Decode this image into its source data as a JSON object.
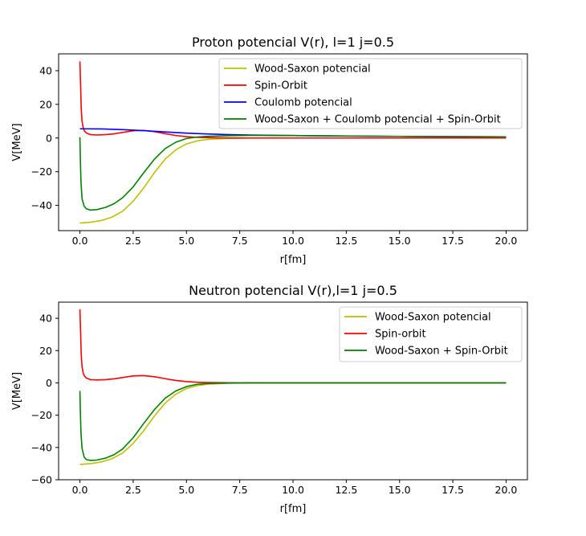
{
  "chart_data": [
    {
      "type": "line",
      "title": "Proton potencial V(r), l=1 j=0.5",
      "xlabel": "r[fm]",
      "ylabel": "V[MeV]",
      "xlim": [
        -1.0,
        21.0
      ],
      "ylim": [
        -55,
        50
      ],
      "xticks": [
        "0.0",
        "2.5",
        "5.0",
        "7.5",
        "10.0",
        "12.5",
        "15.0",
        "17.5",
        "20.0"
      ],
      "yticks": [
        "−40",
        "−20",
        "0",
        "20",
        "40"
      ],
      "legend_position": "top-right",
      "series": [
        {
          "name": "Wood-Saxon potencial",
          "color": "#bfbf00",
          "x": [
            0.0,
            0.5,
            1.0,
            1.5,
            2.0,
            2.5,
            3.0,
            3.5,
            4.0,
            4.5,
            5.0,
            5.5,
            6.0,
            7.0,
            8.0,
            10.0,
            15.0,
            20.0
          ],
          "y": [
            -50.5,
            -50.0,
            -49.0,
            -47.0,
            -43.5,
            -37.5,
            -29.5,
            -20.5,
            -12.5,
            -7.0,
            -3.5,
            -1.7,
            -0.8,
            -0.2,
            -0.05,
            0,
            0,
            0
          ]
        },
        {
          "name": "Spin-Orbit",
          "color": "#ff0000",
          "x": [
            0.0,
            0.03,
            0.06,
            0.1,
            0.15,
            0.2,
            0.3,
            0.5,
            0.8,
            1.2,
            1.6,
            2.0,
            2.5,
            3.0,
            3.5,
            4.0,
            4.5,
            5.0,
            5.5,
            6.0,
            7.0,
            8.0,
            10.0,
            15.0,
            20.0
          ],
          "y": [
            45.5,
            33.0,
            18.0,
            10.0,
            6.5,
            4.5,
            3.0,
            2.0,
            1.8,
            2.0,
            2.5,
            3.3,
            4.3,
            4.5,
            3.8,
            2.6,
            1.5,
            0.8,
            0.4,
            0.2,
            0.05,
            0,
            0,
            0,
            0
          ]
        },
        {
          "name": "Coulomb potencial",
          "color": "#0000ff",
          "x": [
            0.0,
            1.0,
            2.0,
            3.0,
            4.0,
            5.0,
            6.0,
            7.0,
            8.0,
            10.0,
            12.5,
            15.0,
            17.5,
            20.0
          ],
          "y": [
            5.5,
            5.4,
            5.0,
            4.4,
            3.6,
            2.9,
            2.4,
            2.0,
            1.8,
            1.45,
            1.15,
            0.96,
            0.82,
            0.72
          ]
        },
        {
          "name": "Wood-Saxon + Coulomb potencial + Spin-Orbit",
          "color": "#008000",
          "x": [
            0.0,
            0.02,
            0.05,
            0.1,
            0.2,
            0.3,
            0.5,
            0.8,
            1.2,
            1.6,
            2.0,
            2.5,
            3.0,
            3.5,
            4.0,
            4.5,
            5.0,
            5.5,
            6.0,
            7.0,
            8.0,
            10.0,
            15.0,
            20.0
          ],
          "y": [
            0.5,
            -12.0,
            -26.0,
            -36.0,
            -40.5,
            -42.0,
            -42.8,
            -42.5,
            -41.2,
            -39.0,
            -35.5,
            -29.0,
            -20.5,
            -12.5,
            -6.3,
            -2.5,
            -0.3,
            0.6,
            1.0,
            1.4,
            1.6,
            1.45,
            0.96,
            0.72
          ]
        }
      ]
    },
    {
      "type": "line",
      "title": "Neutron potencial V(r),l=1 j=0.5",
      "xlabel": "r[fm]",
      "ylabel": "V[MeV]",
      "xlim": [
        -1.0,
        21.0
      ],
      "ylim": [
        -60,
        50
      ],
      "xticks": [
        "0.0",
        "2.5",
        "5.0",
        "7.5",
        "10.0",
        "12.5",
        "15.0",
        "17.5",
        "20.0"
      ],
      "yticks": [
        "−60",
        "−40",
        "−20",
        "0",
        "20",
        "40"
      ],
      "legend_position": "top-right",
      "series": [
        {
          "name": "Wood-Saxon potencial",
          "color": "#bfbf00",
          "x": [
            0.0,
            0.5,
            1.0,
            1.5,
            2.0,
            2.5,
            3.0,
            3.5,
            4.0,
            4.5,
            5.0,
            5.5,
            6.0,
            7.0,
            8.0,
            10.0,
            15.0,
            20.0
          ],
          "y": [
            -50.5,
            -50.0,
            -49.0,
            -47.0,
            -43.5,
            -37.5,
            -29.5,
            -20.5,
            -12.5,
            -7.0,
            -3.5,
            -1.7,
            -0.8,
            -0.2,
            -0.05,
            0,
            0,
            0
          ]
        },
        {
          "name": "Spin-orbit",
          "color": "#ff0000",
          "x": [
            0.0,
            0.03,
            0.06,
            0.1,
            0.15,
            0.2,
            0.3,
            0.5,
            0.8,
            1.2,
            1.6,
            2.0,
            2.5,
            3.0,
            3.5,
            4.0,
            4.5,
            5.0,
            5.5,
            6.0,
            7.0,
            8.0,
            10.0,
            15.0,
            20.0
          ],
          "y": [
            45.5,
            33.0,
            18.0,
            10.0,
            6.5,
            4.5,
            3.0,
            2.0,
            1.8,
            2.0,
            2.5,
            3.3,
            4.3,
            4.5,
            3.8,
            2.6,
            1.5,
            0.8,
            0.4,
            0.2,
            0.05,
            0,
            0,
            0,
            0
          ]
        },
        {
          "name": "Wood-Saxon + Spin-Orbit",
          "color": "#008000",
          "x": [
            0.0,
            0.02,
            0.05,
            0.1,
            0.2,
            0.3,
            0.5,
            0.8,
            1.2,
            1.6,
            2.0,
            2.5,
            3.0,
            3.5,
            4.0,
            4.5,
            5.0,
            5.5,
            6.0,
            7.0,
            8.0,
            10.0,
            15.0,
            20.0
          ],
          "y": [
            -5.0,
            -17.0,
            -31.0,
            -40.5,
            -46.0,
            -47.5,
            -48.0,
            -47.8,
            -46.6,
            -44.5,
            -41.0,
            -34.0,
            -25.0,
            -16.5,
            -9.5,
            -5.0,
            -2.3,
            -0.9,
            -0.4,
            -0.1,
            0,
            0,
            0,
            0
          ]
        }
      ]
    }
  ]
}
